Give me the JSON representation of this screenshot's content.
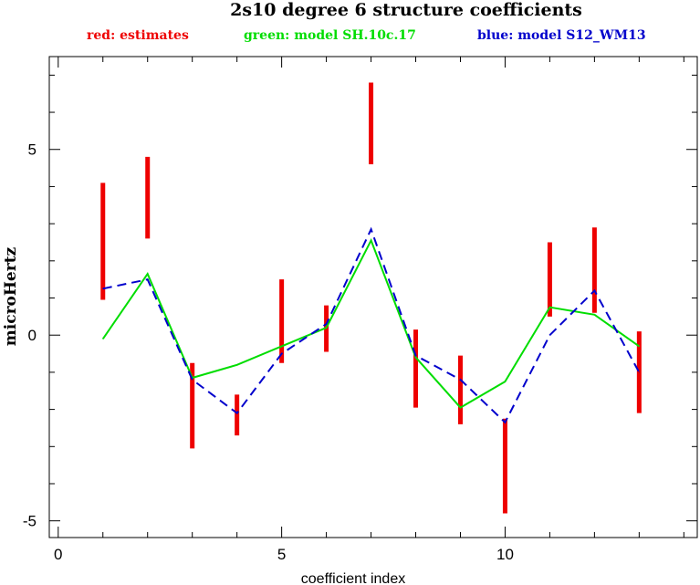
{
  "chart_data": {
    "type": "line",
    "title": "2s10 degree 6 structure coefficients",
    "xlabel": "coefficient index",
    "ylabel": "microHertz",
    "xlim": [
      -0.2,
      14.3
    ],
    "ylim": [
      -5.45,
      7.5
    ],
    "grid": false,
    "legend_position": "top",
    "x_ticks": [
      0,
      5,
      10
    ],
    "y_ticks": [
      -5,
      0,
      5
    ],
    "legend": [
      {
        "label": "red: estimates",
        "color": "#ee0000"
      },
      {
        "label": "green: model SH.10c.17",
        "color": "#00dd00"
      },
      {
        "label": "blue: model S12_WM13",
        "color": "#0000cc"
      }
    ],
    "series": [
      {
        "kind": "error-bars",
        "color": "#ee0000",
        "x": [
          1,
          2,
          3,
          4,
          5,
          6,
          7,
          8,
          9,
          10,
          11,
          12,
          13
        ],
        "low": [
          0.95,
          2.6,
          -3.05,
          -2.7,
          -0.75,
          -0.45,
          4.6,
          -1.95,
          -2.4,
          -4.8,
          0.5,
          0.6,
          -2.1
        ],
        "high": [
          4.1,
          4.8,
          -0.75,
          -1.6,
          1.5,
          0.8,
          6.8,
          0.15,
          -0.55,
          -2.25,
          2.5,
          2.9,
          0.1
        ]
      },
      {
        "kind": "line",
        "color": "#00dd00",
        "dash": false,
        "x": [
          1,
          2,
          3,
          4,
          5,
          6,
          7,
          8,
          9,
          10,
          11,
          12,
          13
        ],
        "y": [
          -0.1,
          1.65,
          -1.15,
          -0.8,
          -0.3,
          0.2,
          2.55,
          -0.6,
          -1.95,
          -1.25,
          0.75,
          0.55,
          -0.3
        ]
      },
      {
        "kind": "line",
        "color": "#0000cc",
        "dash": true,
        "x": [
          1,
          2,
          3,
          4,
          5,
          6,
          7,
          8,
          9,
          10,
          11,
          12,
          13
        ],
        "y": [
          1.25,
          1.5,
          -1.2,
          -2.1,
          -0.5,
          0.3,
          2.85,
          -0.55,
          -1.2,
          -2.35,
          0.0,
          1.2,
          -1.0
        ]
      }
    ]
  }
}
